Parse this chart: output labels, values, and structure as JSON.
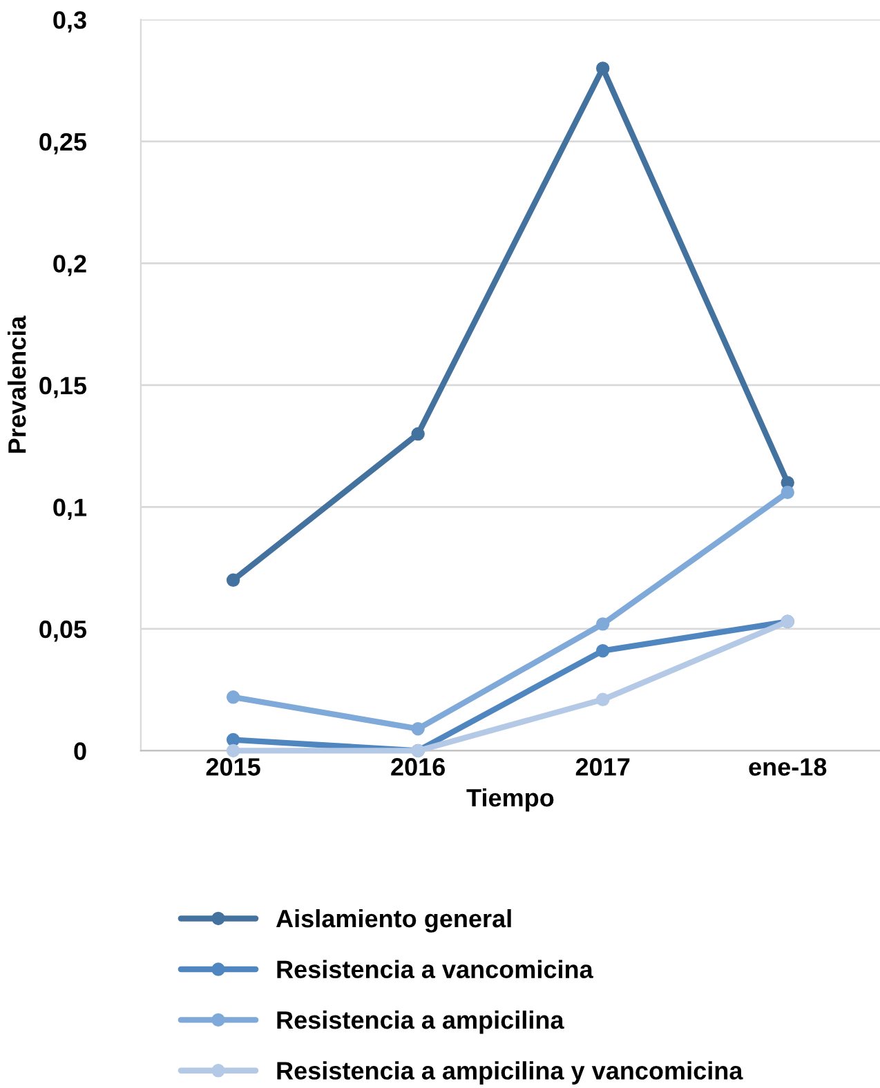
{
  "chart_data": {
    "type": "line",
    "xlabel": "Tiempo",
    "ylabel": "Prevalencia",
    "categories": [
      "2015",
      "2016",
      "2017",
      "ene-18"
    ],
    "series": [
      {
        "name": "Aislamiento general",
        "color": "#44729f",
        "values": [
          0.07,
          0.13,
          0.28,
          0.11
        ]
      },
      {
        "name": "Resistencia a vancomicina",
        "color": "#4f86c0",
        "values": [
          0.0045,
          0,
          0.041,
          0.053
        ]
      },
      {
        "name": "Resistencia a ampicilina",
        "color": "#7ea9d8",
        "values": [
          0.022,
          0.009,
          0.052,
          0.106
        ]
      },
      {
        "name": "Resistencia a ampicilina y vancomicina",
        "color": "#b4c9e6",
        "values": [
          0,
          0,
          0.021,
          0.053
        ]
      }
    ],
    "ylim": [
      0,
      0.3
    ],
    "yticks": [
      {
        "value": 0,
        "label": "0"
      },
      {
        "value": 0.05,
        "label": "0,05"
      },
      {
        "value": 0.1,
        "label": "0,1"
      },
      {
        "value": 0.15,
        "label": "0,15"
      },
      {
        "value": 0.2,
        "label": "0,2"
      },
      {
        "value": 0.25,
        "label": "0,25"
      },
      {
        "value": 0.3,
        "label": "0,3"
      }
    ],
    "grid": "y",
    "legend": "bottom",
    "marker": "circle",
    "line_style": "solid"
  }
}
